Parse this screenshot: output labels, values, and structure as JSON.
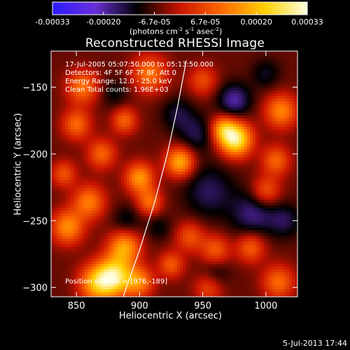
{
  "title": "Reconstructed RHESSI Image",
  "xlabel": "Heliocentric X (arcsec)",
  "ylabel": "Heliocentric Y (arcsec)",
  "date_stamp": "5-Jul-2013 17:44",
  "annotations": {
    "time_range": "17-Jul-2005 05:07:50.000 to 05:13:50.000",
    "detectors": "Detectors: 4F 5F 6F 7F 8F, Att 0",
    "energy_range": "Energy Range: 12.0 - 25.0 keV",
    "clean_counts": "Clean     Total counts: 1.96E+03",
    "peak_position": "Position of Peak = [976,-189]"
  },
  "colorbar": {
    "tick_labels": [
      "-0.00033",
      "-0.00020",
      "-6.7e-05",
      "6.7e-05",
      "0.00020",
      "0.00033"
    ],
    "units_main": "(photons cm",
    "units_exp1": "-2",
    "units_mid": " s",
    "units_exp2": "-1",
    "units_mid2": " asec",
    "units_exp3": "-2",
    "units_end": ")",
    "colors": [
      "#2a1cff",
      "#6a2fd9",
      "#000000",
      "#c81400",
      "#ff6a00",
      "#ffd000",
      "#ffffe0"
    ]
  },
  "chart_data": {
    "type": "heatmap",
    "title": "Reconstructed RHESSI Image",
    "xlabel": "Heliocentric X (arcsec)",
    "ylabel": "Heliocentric Y (arcsec)",
    "xlim": [
      830,
      1025
    ],
    "ylim": [
      -307,
      -123
    ],
    "x_ticks": [
      850,
      900,
      950,
      1000
    ],
    "y_ticks": [
      -300,
      -250,
      -200,
      -150
    ],
    "value_range": [
      -0.00033,
      0.00033
    ],
    "peak": {
      "x": 976,
      "y": -189
    },
    "sources": [
      {
        "x": 976,
        "y": -189,
        "v": 0.00034,
        "s": 9
      },
      {
        "x": 966,
        "y": -181,
        "v": 0.00018,
        "s": 7
      },
      {
        "x": 932,
        "y": -206,
        "v": 0.00024,
        "s": 8
      },
      {
        "x": 880,
        "y": -292,
        "v": 0.0003,
        "s": 10
      },
      {
        "x": 866,
        "y": -297,
        "v": 0.00022,
        "s": 10
      },
      {
        "x": 900,
        "y": -296,
        "v": 0.00018,
        "s": 8
      },
      {
        "x": 888,
        "y": -270,
        "v": 0.00022,
        "s": 9
      },
      {
        "x": 860,
        "y": -236,
        "v": 0.00018,
        "s": 9
      },
      {
        "x": 843,
        "y": -255,
        "v": 0.0002,
        "s": 9
      },
      {
        "x": 900,
        "y": -218,
        "v": 0.00021,
        "s": 8
      },
      {
        "x": 908,
        "y": -236,
        "v": 0.00016,
        "s": 7
      },
      {
        "x": 870,
        "y": -200,
        "v": 0.00015,
        "s": 8
      },
      {
        "x": 850,
        "y": -178,
        "v": 0.00016,
        "s": 8
      },
      {
        "x": 888,
        "y": -175,
        "v": 0.00015,
        "s": 7
      },
      {
        "x": 855,
        "y": -150,
        "v": 0.00017,
        "s": 9
      },
      {
        "x": 908,
        "y": -140,
        "v": 0.00017,
        "s": 10
      },
      {
        "x": 950,
        "y": -145,
        "v": 0.00012,
        "s": 8
      },
      {
        "x": 1012,
        "y": -168,
        "v": 0.00019,
        "s": 9
      },
      {
        "x": 1008,
        "y": -205,
        "v": 0.00015,
        "s": 8
      },
      {
        "x": 1000,
        "y": -228,
        "v": 0.00014,
        "s": 8
      },
      {
        "x": 988,
        "y": -270,
        "v": 0.00015,
        "s": 8
      },
      {
        "x": 960,
        "y": -272,
        "v": 0.00014,
        "s": 8
      },
      {
        "x": 940,
        "y": -262,
        "v": 0.00013,
        "s": 8
      },
      {
        "x": 1010,
        "y": -296,
        "v": 0.00016,
        "s": 9
      },
      {
        "x": 955,
        "y": -300,
        "v": 0.00012,
        "s": 8
      },
      {
        "x": 925,
        "y": -283,
        "v": 0.00014,
        "s": 7
      },
      {
        "x": 840,
        "y": -215,
        "v": 0.00013,
        "s": 7
      },
      {
        "x": 955,
        "y": -228,
        "v": -0.0001,
        "s": 14
      },
      {
        "x": 990,
        "y": -245,
        "v": -0.00012,
        "s": 12
      },
      {
        "x": 975,
        "y": -160,
        "v": -0.00014,
        "s": 9
      },
      {
        "x": 945,
        "y": -185,
        "v": -9e-05,
        "s": 10
      },
      {
        "x": 930,
        "y": -170,
        "v": -8e-05,
        "s": 9
      },
      {
        "x": 1015,
        "y": -250,
        "v": -9e-05,
        "s": 9
      },
      {
        "x": 890,
        "y": -250,
        "v": -7e-05,
        "s": 8
      },
      {
        "x": 915,
        "y": -255,
        "v": -6e-05,
        "s": 7
      },
      {
        "x": 960,
        "y": -290,
        "v": -7e-05,
        "s": 8
      },
      {
        "x": 880,
        "y": -155,
        "v": -6e-05,
        "s": 8
      },
      {
        "x": 1000,
        "y": -140,
        "v": -7e-05,
        "s": 8
      }
    ],
    "limb_curve": [
      {
        "x": 887,
        "y": -307
      },
      {
        "x": 900,
        "y": -272
      },
      {
        "x": 912,
        "y": -236
      },
      {
        "x": 922,
        "y": -200
      },
      {
        "x": 930,
        "y": -165
      },
      {
        "x": 937,
        "y": -130
      }
    ]
  }
}
